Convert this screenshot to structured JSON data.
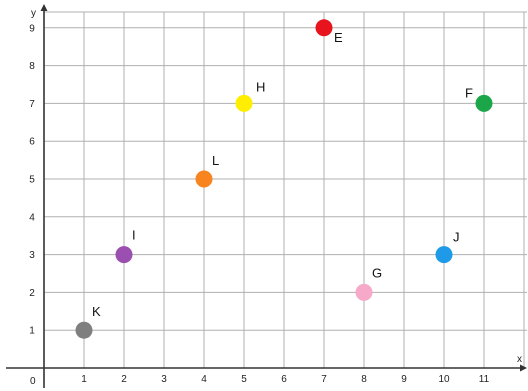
{
  "chart_data": {
    "type": "scatter",
    "xlabel": "x",
    "ylabel": "y",
    "xlim": [
      0,
      12
    ],
    "ylim": [
      0,
      9.4
    ],
    "origin_label": "0",
    "grid": true,
    "x_ticks": [
      1,
      2,
      3,
      4,
      5,
      6,
      7,
      8,
      9,
      10,
      11
    ],
    "y_ticks": [
      1,
      2,
      3,
      4,
      5,
      6,
      7,
      8,
      9
    ],
    "points": [
      {
        "label": "K",
        "x": 1,
        "y": 1,
        "color": "#7f7f7f"
      },
      {
        "label": "I",
        "x": 2,
        "y": 3,
        "color": "#9b4fb0"
      },
      {
        "label": "L",
        "x": 4,
        "y": 5,
        "color": "#f7841f"
      },
      {
        "label": "H",
        "x": 5,
        "y": 7,
        "color": "#ffee00"
      },
      {
        "label": "E",
        "x": 7,
        "y": 9,
        "color": "#e8141d"
      },
      {
        "label": "G",
        "x": 8,
        "y": 2,
        "color": "#f6a9c8"
      },
      {
        "label": "J",
        "x": 10,
        "y": 3,
        "color": "#1f9ae8"
      },
      {
        "label": "F",
        "x": 11,
        "y": 7,
        "color": "#1ca64a"
      }
    ]
  }
}
